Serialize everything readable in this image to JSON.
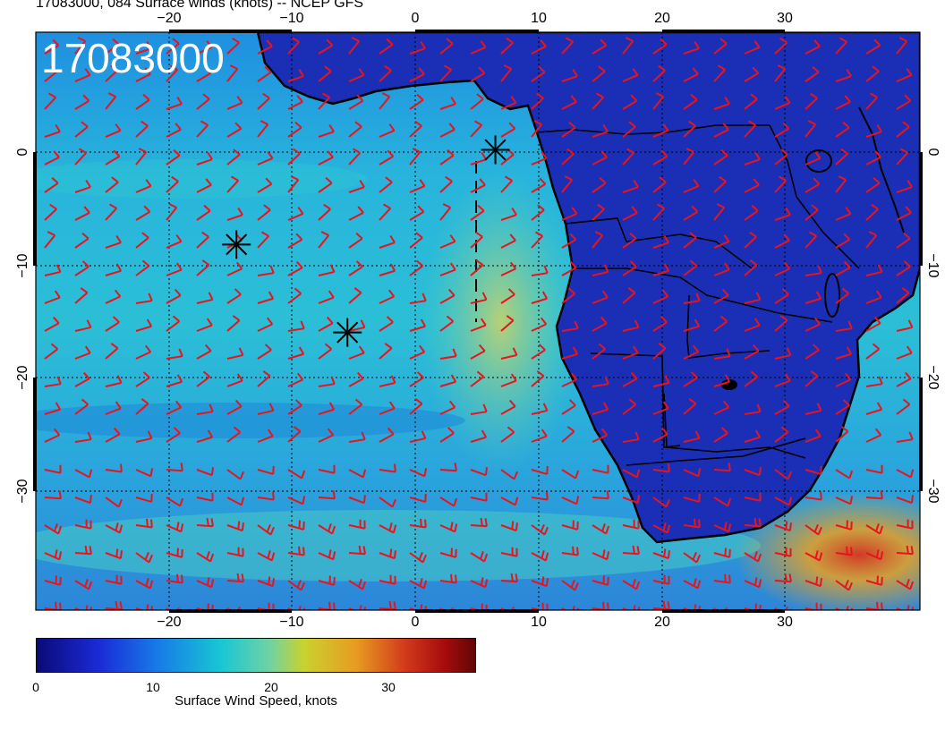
{
  "header": {
    "title": "17083000, 084 Surface winds (knots) -- NCEP GFS",
    "timestamp": "17083000"
  },
  "map": {
    "lon_labels_top": [
      "−20",
      "−10",
      "0",
      "10",
      "20",
      "30"
    ],
    "lon_labels_bottom": [
      "−20",
      "−10",
      "0",
      "10",
      "20",
      "30"
    ],
    "lat_labels_left": [
      "0",
      "−10",
      "−20",
      "−30"
    ],
    "lat_labels_right": [
      "0",
      "−10",
      "−20",
      "−30"
    ],
    "graticule_lon_degrees": [
      -30,
      -20,
      -10,
      0,
      10,
      20,
      30
    ],
    "graticule_lat_degrees": [
      0,
      -10,
      -20,
      -30
    ],
    "markers": [
      {
        "name": "storm-marker-1",
        "lon": -14.5,
        "lat": -8.2
      },
      {
        "name": "storm-marker-2",
        "lon": -5.5,
        "lat": -16.0
      },
      {
        "name": "storm-marker-3",
        "lon": 6.5,
        "lat": 0.2
      }
    ],
    "barb_color": "#e8141c",
    "coast_color": "#000000"
  },
  "colorbar": {
    "ticks": [
      "0",
      "10",
      "20",
      "30"
    ],
    "title": "Surface Wind Speed, knots",
    "stops": [
      "#0a0a78",
      "#1a2ad6",
      "#1877e8",
      "#18c6d4",
      "#6ed2a6",
      "#c9d22e",
      "#e89a22",
      "#d23a1c",
      "#a60c0c",
      "#620606"
    ]
  }
}
